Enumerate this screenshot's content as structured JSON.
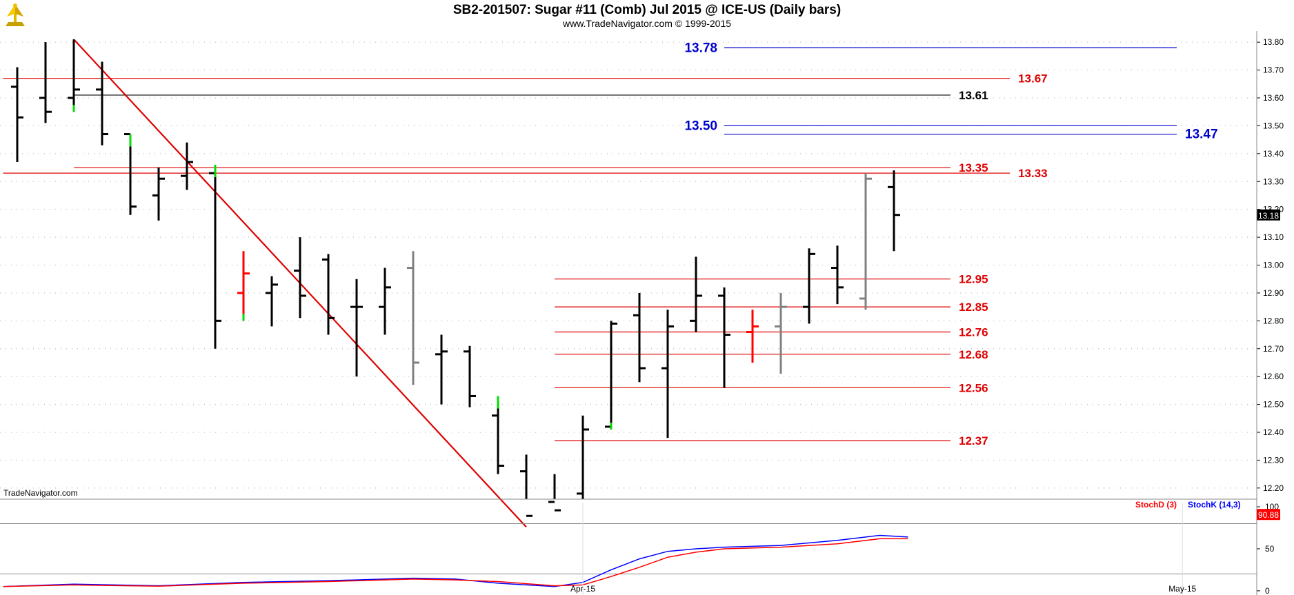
{
  "header": {
    "title": "SB2-201507:  Sugar #11 (Comb) Jul 2015 @ ICE-US  (Daily bars)",
    "subtitle": "www.TradeNavigator.com © 1999-2015"
  },
  "colors": {
    "bull_bar": "#000000",
    "neutral_bar": "#808080",
    "red_bar": "#ff0000",
    "trendline": "#e00000",
    "support_line": "#e00000",
    "target_line": "#0000cc",
    "stoch_k": "#0000ff",
    "stoch_d": "#ff0000",
    "volume_tick": "#00dd00"
  },
  "chart_data": [
    {
      "type": "ohlc",
      "watermark": "TradeNavigator.com",
      "y_ticks": [
        "13.80",
        "13.70",
        "13.60",
        "13.50",
        "13.40",
        "13.30",
        "13.20",
        "13.10",
        "13.00",
        "12.90",
        "12.80",
        "12.70",
        "12.60",
        "12.50",
        "12.40",
        "12.30",
        "12.20"
      ],
      "ylim": [
        12.16,
        13.84
      ],
      "last_price": "13.18",
      "x_labels": [
        {
          "label": "Apr-15",
          "bar": 20
        },
        {
          "label": "May-15",
          "bar": 41.2
        }
      ],
      "bars": [
        {
          "o": 13.64,
          "h": 13.71,
          "l": 13.37,
          "c": 13.53,
          "color": "black"
        },
        {
          "o": 13.6,
          "h": 13.8,
          "l": 13.51,
          "c": 13.55,
          "color": "black"
        },
        {
          "o": 13.6,
          "h": 13.81,
          "l": 13.55,
          "c": 13.63,
          "color": "black",
          "mark": "low"
        },
        {
          "o": 13.63,
          "h": 13.73,
          "l": 13.43,
          "c": 13.47,
          "color": "black"
        },
        {
          "o": 13.47,
          "h": 13.47,
          "l": 13.18,
          "c": 13.21,
          "color": "black",
          "mark": "high"
        },
        {
          "o": 13.25,
          "h": 13.35,
          "l": 13.16,
          "c": 13.31,
          "color": "black"
        },
        {
          "o": 13.32,
          "h": 13.44,
          "l": 13.27,
          "c": 13.37,
          "color": "black"
        },
        {
          "o": 13.33,
          "h": 13.36,
          "l": 12.7,
          "c": 12.8,
          "color": "black",
          "mark": "high"
        },
        {
          "o": 12.9,
          "h": 13.05,
          "l": 12.8,
          "c": 12.97,
          "color": "red",
          "mark": "low"
        },
        {
          "o": 12.9,
          "h": 12.96,
          "l": 12.78,
          "c": 12.93,
          "color": "black"
        },
        {
          "o": 12.98,
          "h": 13.1,
          "l": 12.81,
          "c": 12.89,
          "color": "black"
        },
        {
          "o": 13.02,
          "h": 13.04,
          "l": 12.75,
          "c": 12.81,
          "color": "black"
        },
        {
          "o": 12.85,
          "h": 12.95,
          "l": 12.6,
          "c": 12.85,
          "color": "black"
        },
        {
          "o": 12.85,
          "h": 12.99,
          "l": 12.75,
          "c": 12.92,
          "color": "black"
        },
        {
          "o": 12.99,
          "h": 13.05,
          "l": 12.57,
          "c": 12.65,
          "color": "gray"
        },
        {
          "o": 12.68,
          "h": 12.75,
          "l": 12.5,
          "c": 12.69,
          "color": "black"
        },
        {
          "o": 12.69,
          "h": 12.71,
          "l": 12.49,
          "c": 12.53,
          "color": "black"
        },
        {
          "o": 12.46,
          "h": 12.53,
          "l": 12.25,
          "c": 12.28,
          "color": "black",
          "mark": "high"
        },
        {
          "o": 12.26,
          "h": 12.32,
          "l": 12.05,
          "c": 12.1,
          "color": "black"
        },
        {
          "o": 12.15,
          "h": 12.25,
          "l": 12.05,
          "c": 12.12,
          "color": "black"
        },
        {
          "o": 12.18,
          "h": 12.46,
          "l": 12.1,
          "c": 12.41,
          "color": "black"
        },
        {
          "o": 12.42,
          "h": 12.8,
          "l": 12.41,
          "c": 12.79,
          "color": "black",
          "mark": "low"
        },
        {
          "o": 12.82,
          "h": 12.9,
          "l": 12.58,
          "c": 12.63,
          "color": "black"
        },
        {
          "o": 12.63,
          "h": 12.84,
          "l": 12.38,
          "c": 12.78,
          "color": "black"
        },
        {
          "o": 12.8,
          "h": 13.03,
          "l": 12.76,
          "c": 12.89,
          "color": "black"
        },
        {
          "o": 12.89,
          "h": 12.92,
          "l": 12.56,
          "c": 12.75,
          "color": "black"
        },
        {
          "o": 12.76,
          "h": 12.84,
          "l": 12.65,
          "c": 12.78,
          "color": "red"
        },
        {
          "o": 12.78,
          "h": 12.9,
          "l": 12.61,
          "c": 12.85,
          "color": "gray"
        },
        {
          "o": 12.85,
          "h": 13.06,
          "l": 12.79,
          "c": 13.04,
          "color": "black"
        },
        {
          "o": 12.99,
          "h": 13.07,
          "l": 12.86,
          "c": 12.92,
          "color": "black"
        },
        {
          "o": 12.88,
          "h": 13.33,
          "l": 12.84,
          "c": 13.31,
          "color": "gray"
        },
        {
          "o": 13.28,
          "h": 13.34,
          "l": 13.05,
          "c": 13.18,
          "color": "black"
        }
      ],
      "trendline": {
        "from": {
          "bar": 2,
          "price": 13.81
        },
        "to": {
          "bar": 18,
          "price": 12.06
        }
      },
      "levels": [
        {
          "price": 13.78,
          "label": "13.78",
          "color": "blue",
          "from_bar": 25,
          "to_bar": 41,
          "label_side": "left"
        },
        {
          "price": 13.67,
          "label": "13.67",
          "color": "red",
          "from_bar": -0.5,
          "to_bar": 35.1,
          "label_side": "right"
        },
        {
          "price": 13.61,
          "label": "13.61",
          "color": "black",
          "from_bar": 2,
          "to_bar": 33,
          "label_side": "right"
        },
        {
          "price": 13.5,
          "label": "13.50",
          "color": "blue",
          "from_bar": 25,
          "to_bar": 41,
          "label_side": "left"
        },
        {
          "price": 13.47,
          "label": "13.47",
          "color": "blue",
          "from_bar": 25,
          "to_bar": 41,
          "label_side": "right"
        },
        {
          "price": 13.35,
          "label": "13.35",
          "color": "red",
          "from_bar": 2,
          "to_bar": 33,
          "label_side": "right"
        },
        {
          "price": 13.33,
          "label": "13.33",
          "color": "red",
          "from_bar": -0.5,
          "to_bar": 35.1,
          "label_side": "right"
        },
        {
          "price": 12.95,
          "label": "12.95",
          "color": "red",
          "from_bar": 19,
          "to_bar": 33,
          "label_side": "right"
        },
        {
          "price": 12.85,
          "label": "12.85",
          "color": "red",
          "from_bar": 19,
          "to_bar": 33,
          "label_side": "right"
        },
        {
          "price": 12.76,
          "label": "12.76",
          "color": "red",
          "from_bar": 19,
          "to_bar": 33,
          "label_side": "right"
        },
        {
          "price": 12.68,
          "label": "12.68",
          "color": "red",
          "from_bar": 19,
          "to_bar": 33,
          "label_side": "right"
        },
        {
          "price": 12.56,
          "label": "12.56",
          "color": "red",
          "from_bar": 19,
          "to_bar": 33,
          "label_side": "right"
        },
        {
          "price": 12.37,
          "label": "12.37",
          "color": "red",
          "from_bar": 19,
          "to_bar": 33,
          "label_side": "right"
        }
      ]
    },
    {
      "type": "line",
      "legend": [
        "StochD (3)",
        "StochK (14,3)"
      ],
      "y_ticks": [
        "100",
        "50",
        "0"
      ],
      "ylim": [
        -5,
        105
      ],
      "ref_lines": [
        80,
        20
      ],
      "last_value": "90.88",
      "series": [
        {
          "name": "StochK (14,3)",
          "color": "blue",
          "points": [
            [
              -0.5,
              5
            ],
            [
              2,
              8
            ],
            [
              5,
              6
            ],
            [
              8,
              10
            ],
            [
              11,
              12
            ],
            [
              14,
              15
            ],
            [
              15.5,
              14
            ],
            [
              17,
              9
            ],
            [
              19,
              5
            ],
            [
              20,
              10
            ],
            [
              21,
              25
            ],
            [
              22,
              38
            ],
            [
              23,
              47
            ],
            [
              24,
              50
            ],
            [
              25,
              52
            ],
            [
              27,
              54
            ],
            [
              29,
              60
            ],
            [
              30.5,
              66
            ],
            [
              31.5,
              64
            ]
          ]
        },
        {
          "name": "StochD (3)",
          "color": "red",
          "points": [
            [
              -0.5,
              5
            ],
            [
              2,
              7
            ],
            [
              5,
              5.5
            ],
            [
              8,
              9
            ],
            [
              11,
              11
            ],
            [
              14,
              14
            ],
            [
              15.5,
              13
            ],
            [
              17,
              11
            ],
            [
              19,
              6
            ],
            [
              20,
              7
            ],
            [
              21,
              17
            ],
            [
              22,
              28
            ],
            [
              23,
              40
            ],
            [
              24,
              46
            ],
            [
              25,
              50
            ],
            [
              27,
              52
            ],
            [
              29,
              56
            ],
            [
              30.5,
              62
            ],
            [
              31.5,
              62
            ]
          ]
        }
      ]
    }
  ]
}
